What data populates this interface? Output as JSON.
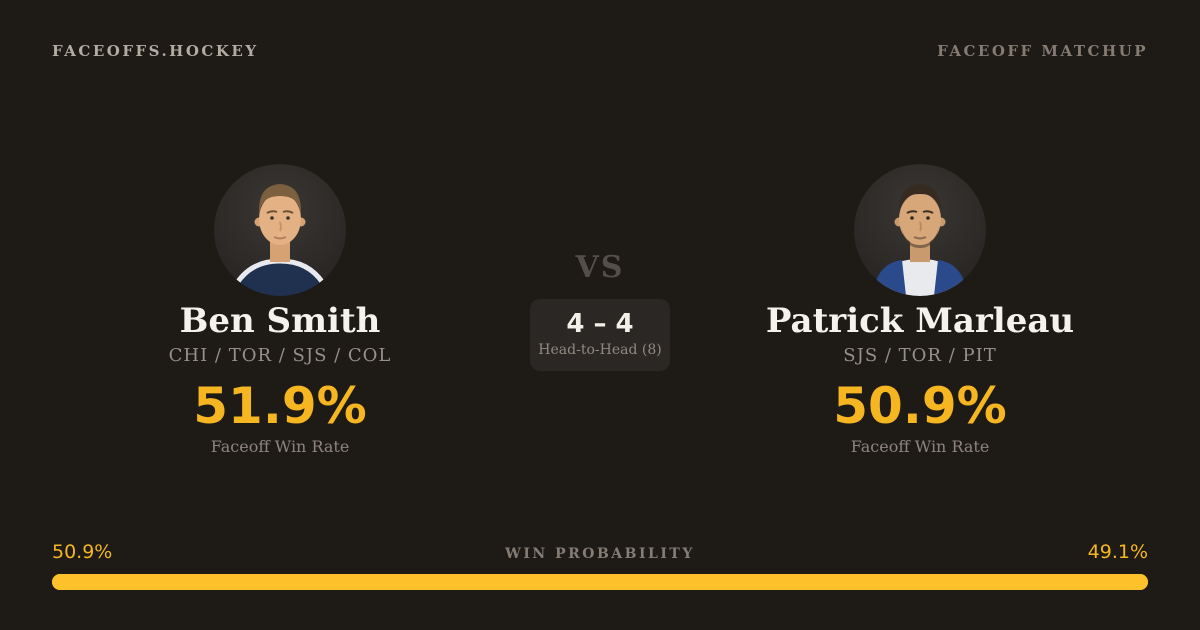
{
  "colors": {
    "background": "#1e1a16",
    "accent": "#f5b621",
    "bar": "#fcc12b",
    "panel": "#2b2724"
  },
  "header": {
    "logo": "FACEOFFS.HOCKEY",
    "label": "FACEOFF MATCHUP"
  },
  "players": {
    "left": {
      "name": "Ben Smith",
      "teams": "CHI / TOR / SJS / COL",
      "win_rate": "51.9%",
      "win_rate_label": "Faceoff Win Rate",
      "avatar": "player-headshot"
    },
    "right": {
      "name": "Patrick Marleau",
      "teams": "SJS / TOR / PIT",
      "win_rate": "50.9%",
      "win_rate_label": "Faceoff Win Rate",
      "avatar": "player-headshot"
    }
  },
  "matchup": {
    "vs": "VS",
    "score": "4 – 4",
    "subtitle": "Head-to-Head (8)"
  },
  "probability": {
    "label": "WIN PROBABILITY",
    "left_label": "50.9%",
    "right_label": "49.1%",
    "left_value": 50.9,
    "right_value": 49.1
  }
}
